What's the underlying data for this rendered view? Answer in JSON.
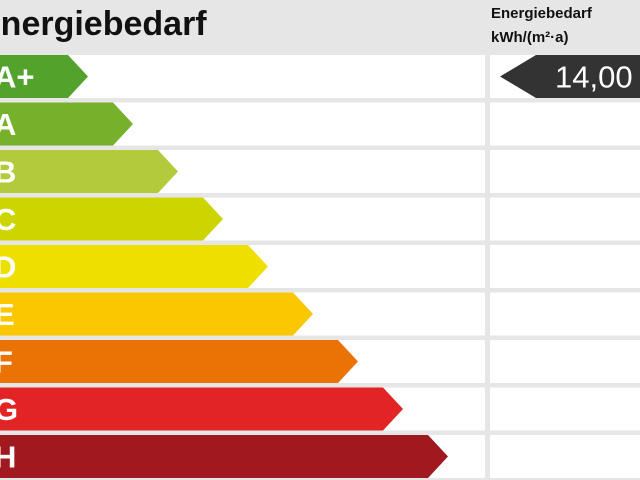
{
  "header": {
    "title": "Energiebedarf",
    "value_heading": [
      "Energiebedarf",
      "kWh/(m²·a)"
    ]
  },
  "classes": [
    {
      "label": "A+",
      "color": "#52a22b"
    },
    {
      "label": "A",
      "color": "#77b12c"
    },
    {
      "label": "B",
      "color": "#b3cb3a"
    },
    {
      "label": "C",
      "color": "#cdd500"
    },
    {
      "label": "D",
      "color": "#efdf00"
    },
    {
      "label": "E",
      "color": "#fbc700"
    },
    {
      "label": "F",
      "color": "#eb7306"
    },
    {
      "label": "G",
      "color": "#e22424"
    },
    {
      "label": "H",
      "color": "#a0191f"
    }
  ],
  "indicator": {
    "value": "14,00",
    "row": 0,
    "color": "#333333"
  }
}
